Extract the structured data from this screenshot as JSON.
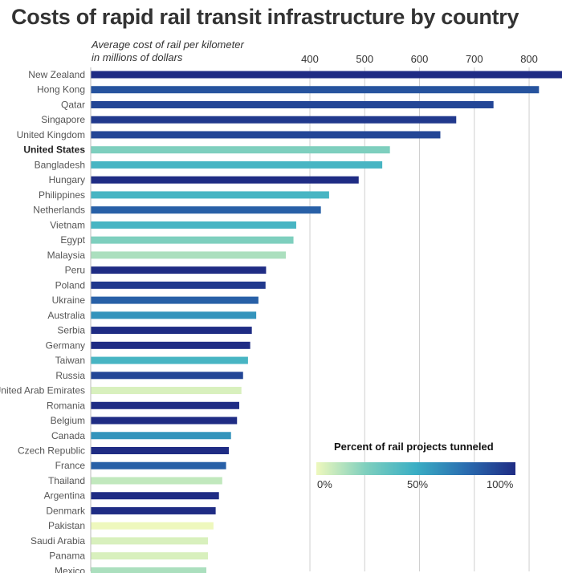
{
  "title": "Costs of rapid rail transit infrastructure by country",
  "subtitle_line1": "Average cost of rail per kilometer",
  "subtitle_line2": "in millions of dollars",
  "legend": {
    "title": "Percent of rail projects tunneled",
    "labels": [
      "0%",
      "50%",
      "100%"
    ],
    "colors": [
      "#eef8bd",
      "#7ecfbe",
      "#3aaec4",
      "#2a6db0",
      "#1f2c84"
    ]
  },
  "chart_data": {
    "type": "bar",
    "orientation": "horizontal",
    "title": "Costs of rapid rail transit infrastructure by country",
    "xlabel": "Average cost of rail per kilometer in millions of dollars",
    "xlim": [
      0,
      860
    ],
    "xticks": [
      400,
      500,
      600,
      700,
      800
    ],
    "highlight": "United States",
    "categories": [
      "New Zealand",
      "Hong Kong",
      "Qatar",
      "Singapore",
      "United Kingdom",
      "United States",
      "Bangladesh",
      "Hungary",
      "Philippines",
      "Netherlands",
      "Vietnam",
      "Egypt",
      "Malaysia",
      "Peru",
      "Poland",
      "Ukraine",
      "Australia",
      "Serbia",
      "Germany",
      "Taiwan",
      "Russia",
      "United Arab Emirates",
      "Romania",
      "Belgium",
      "Canada",
      "Czech Republic",
      "France",
      "Thailand",
      "Argentina",
      "Denmark",
      "Pakistan",
      "Saudi Arabia",
      "Panama",
      "Mexico"
    ],
    "values": [
      861,
      818,
      735,
      667,
      638,
      546,
      532,
      489,
      435,
      420,
      375,
      370,
      356,
      320,
      319,
      306,
      302,
      294,
      291,
      287,
      278,
      275,
      271,
      267,
      256,
      252,
      247,
      240,
      234,
      228,
      224,
      214,
      214,
      211
    ],
    "tunneled_percent": [
      100,
      85,
      90,
      95,
      90,
      25,
      45,
      100,
      45,
      80,
      45,
      25,
      15,
      100,
      95,
      80,
      60,
      100,
      100,
      45,
      90,
      5,
      100,
      100,
      60,
      100,
      80,
      10,
      100,
      100,
      0,
      5,
      5,
      15
    ]
  }
}
